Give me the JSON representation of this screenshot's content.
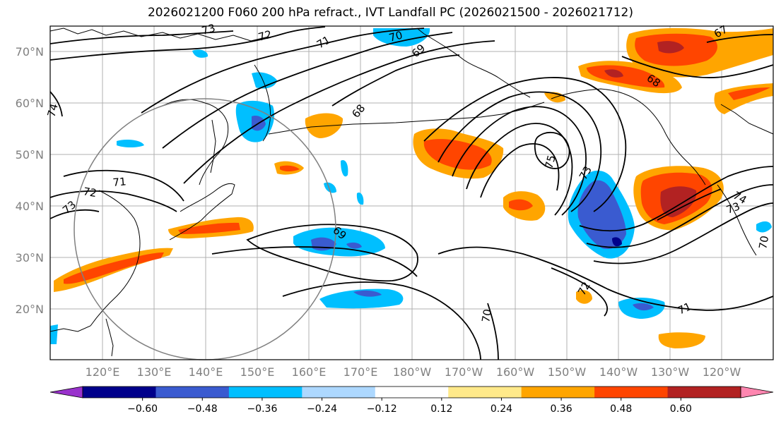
{
  "title": "2026021200 F060 200 hPa refract., IVT Landfall PC (2026021500 - 2026021712)",
  "latitude_labels": [
    "70°N",
    "60°N",
    "50°N",
    "40°N",
    "30°N",
    "20°N"
  ],
  "longitude_labels": [
    "120°E",
    "130°E",
    "140°E",
    "150°E",
    "160°E",
    "170°E",
    "180°W",
    "170°W",
    "160°W",
    "150°W",
    "140°W",
    "130°W",
    "120°W"
  ],
  "contour_labels": [
    "73",
    "72",
    "71",
    "70",
    "69",
    "68",
    "67",
    "74",
    "72",
    "71",
    "73",
    "69",
    "68",
    "75",
    "73",
    "72",
    "70",
    "71",
    "74",
    "73",
    "70"
  ],
  "colorbar": {
    "tick_labels": [
      "−0.60",
      "−0.48",
      "−0.36",
      "−0.24",
      "−0.12",
      "0.12",
      "0.24",
      "0.36",
      "0.48",
      "0.60"
    ],
    "colors": [
      "#9932cc",
      "#00008b",
      "#3a5bd0",
      "#00bfff",
      "#add8ff",
      "#ffffff",
      "#ffe98a",
      "#ffa500",
      "#ff4500",
      "#b22222",
      "#ff86b0"
    ]
  },
  "palette": {
    "orange_light": "#ffe98a",
    "orange": "#ffa500",
    "red_orange": "#ff4500",
    "dark_red": "#b22222",
    "light_blue": "#add8ff",
    "sky_blue": "#00bfff",
    "blue": "#3a5bd0"
  }
}
